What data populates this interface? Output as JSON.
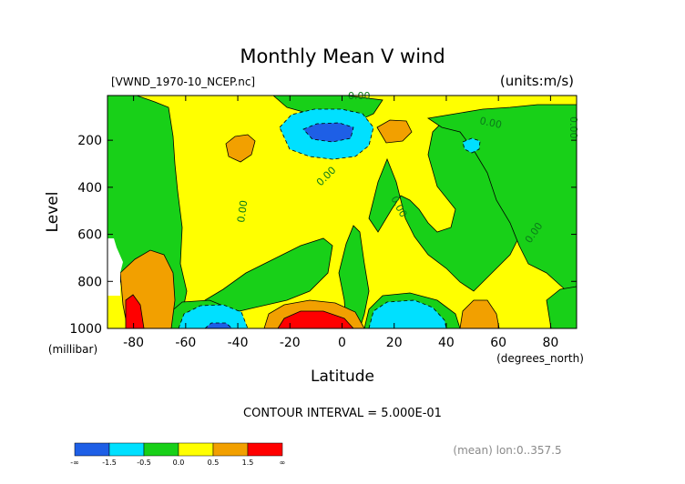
{
  "title": "Monthly Mean V wind",
  "file_label": "[VWND_1970-10_NCEP.nc]",
  "units_label": "(units:m/s)",
  "contour_interval_text": "CONTOUR INTERVAL = 5.000E-01",
  "mean_label": "(mean) lon:0..357.5",
  "colors": {
    "dark_blue": "#1e5fe6",
    "cyan": "#00e0ff",
    "green": "#18d018",
    "yellow": "#ffff00",
    "orange": "#f2a000",
    "red": "#ff0000",
    "dark_red": "#c80000"
  },
  "chart_data": {
    "type": "contour",
    "title": "Monthly Mean V wind",
    "xlabel": "Latitude",
    "x_unit_label": "(degrees_north)",
    "ylabel": "Level",
    "y_unit_label": "(millibar)",
    "xlim": [
      -90,
      90
    ],
    "ylim": [
      1000,
      10
    ],
    "x_ticks": [
      -80,
      -60,
      -40,
      -20,
      0,
      20,
      40,
      60,
      80
    ],
    "y_ticks": [
      200,
      400,
      600,
      800,
      1000
    ],
    "contour_interval": 0.5,
    "contour_labels": [
      {
        "text": "0.00",
        "lat": 2,
        "level": 10
      },
      {
        "text": "0.00",
        "lat": 58,
        "level": 100
      },
      {
        "text": "0.00",
        "lat": 88,
        "level": 130
      },
      {
        "text": "0.00",
        "lat": -9,
        "level": 370
      },
      {
        "text": "0.00",
        "lat": -35,
        "level": 480
      },
      {
        "text": "0.00",
        "lat": 20,
        "level": 480
      },
      {
        "text": "0.00",
        "lat": 78,
        "level": 650
      }
    ],
    "colorbar": {
      "boundaries": [
        "-∞",
        "-1.5",
        "-0.5",
        "0.0",
        "0.5",
        "1.5",
        "∞"
      ]
    },
    "regions": [
      {
        "value_range": "-0.5 to 0.0",
        "color_key": "green",
        "areas": [
          {
            "lat": [
              -75,
              -60
            ],
            "level": [
              10,
              800
            ]
          },
          {
            "lat": [
              -30,
              -20
            ],
            "level": [
              650,
              900
            ]
          },
          {
            "lat": [
              5,
              40
            ],
            "level": [
              600,
              1000
            ]
          },
          {
            "lat": [
              35,
              85
            ],
            "level": [
              100,
              700
            ]
          }
        ]
      },
      {
        "value_range": "-1.5 to -0.5",
        "color_key": "cyan",
        "areas": [
          {
            "lat": [
              -15,
              10
            ],
            "level": [
              90,
              250
            ]
          },
          {
            "lat": [
              -65,
              -35
            ],
            "level": [
              900,
              1000
            ]
          },
          {
            "lat": [
              12,
              38
            ],
            "level": [
              880,
              1000
            ]
          }
        ]
      },
      {
        "value_range": "< -1.5",
        "color_key": "dark_blue",
        "areas": [
          {
            "lat": [
              -10,
              5
            ],
            "level": [
              130,
              200
            ]
          }
        ]
      },
      {
        "value_range": "0.5 to 1.5",
        "color_key": "orange",
        "areas": [
          {
            "lat": [
              -45,
              -35
            ],
            "level": [
              150,
              300
            ]
          },
          {
            "lat": [
              15,
              25
            ],
            "level": [
              130,
              200
            ]
          },
          {
            "lat": [
              -85,
              -72
            ],
            "level": [
              700,
              1000
            ]
          },
          {
            "lat": [
              -30,
              0
            ],
            "level": [
              870,
              1000
            ]
          },
          {
            "lat": [
              45,
              58
            ],
            "level": [
              910,
              1000
            ]
          }
        ]
      },
      {
        "value_range": "> 1.5",
        "color_key": "red",
        "areas": [
          {
            "lat": [
              -90,
              -82
            ],
            "level": [
              850,
              1000
            ]
          },
          {
            "lat": [
              -20,
              2
            ],
            "level": [
              920,
              1000
            ]
          }
        ]
      }
    ]
  }
}
